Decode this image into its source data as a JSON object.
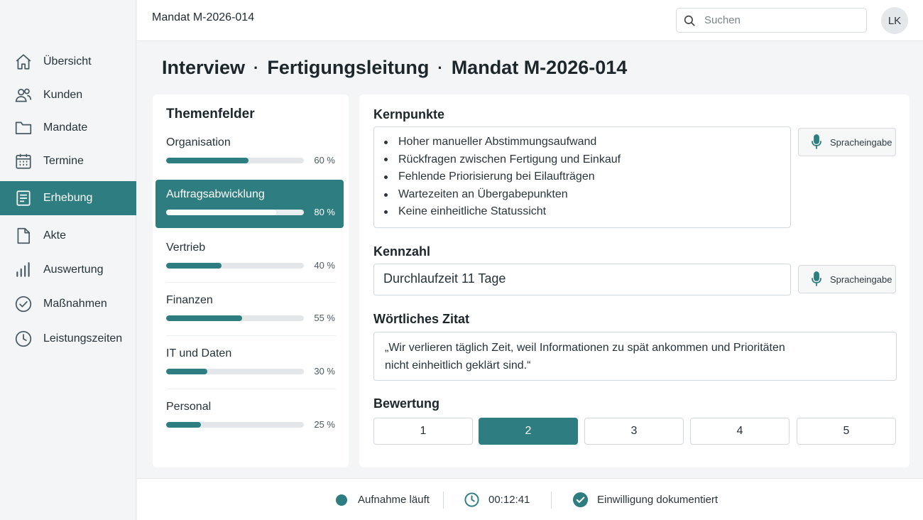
{
  "header": {
    "title": "Mandat M-2026-014",
    "search_placeholder": "Suchen",
    "avatar_initials": "LK"
  },
  "sidebar": {
    "items": [
      {
        "label": "Übersicht",
        "icon": "home-icon"
      },
      {
        "label": "Kunden",
        "icon": "users-icon"
      },
      {
        "label": "Mandate",
        "icon": "folder-icon"
      },
      {
        "label": "Termine",
        "icon": "calendar-icon"
      },
      {
        "label": "Erhebung",
        "icon": "form-icon",
        "active": true
      },
      {
        "label": "Akte",
        "icon": "document-icon"
      },
      {
        "label": "Auswertung",
        "icon": "bar-chart-icon"
      },
      {
        "label": "Maßnahmen",
        "icon": "check-circle-icon"
      },
      {
        "label": "Leistungszeiten",
        "icon": "clock-icon"
      }
    ]
  },
  "page_title": {
    "part1": "Interview",
    "part2": "Fertigungsleitung",
    "part3": "Mandat M-2026-014",
    "separator": "·"
  },
  "topics": {
    "heading": "Themenfelder",
    "items": [
      {
        "label": "Organisation",
        "progress": 60,
        "progress_label": "60 %"
      },
      {
        "label": "Auftragsabwicklung",
        "progress": 80,
        "progress_label": "80 %",
        "active": true
      },
      {
        "label": "Vertrieb",
        "progress": 40,
        "progress_label": "40 %"
      },
      {
        "label": "Finanzen",
        "progress": 55,
        "progress_label": "55 %"
      },
      {
        "label": "IT und Daten",
        "progress": 30,
        "progress_label": "30 %"
      },
      {
        "label": "Personal",
        "progress": 25,
        "progress_label": "25 %"
      }
    ]
  },
  "main": {
    "kernpunkte": {
      "label": "Kernpunkte",
      "items": [
        "Hoher manueller Abstimmungsaufwand",
        "Rückfragen zwischen Fertigung und Einkauf",
        "Fehlende Priorisierung bei Eilaufträgen",
        "Wartezeiten an Übergabepunkten",
        "Keine einheitliche Statussicht"
      ]
    },
    "voice_button_label": "Spracheingabe",
    "kennzahl": {
      "label": "Kennzahl",
      "value": "Durchlaufzeit 11 Tage"
    },
    "zitat": {
      "label": "Wörtliches Zitat",
      "text": "„Wir verlieren täglich Zeit, weil Informationen zu spät ankommen und Prioritäten nicht einheitlich geklärt sind.“"
    },
    "bewertung": {
      "label": "Bewertung",
      "options": [
        "1",
        "2",
        "3",
        "4",
        "5"
      ],
      "selected": "2"
    }
  },
  "footer": {
    "recording": "Aufnahme läuft",
    "timer": "00:12:41",
    "consent": "Einwilligung dokumentiert"
  },
  "colors": {
    "accent": "#2e7d80",
    "background": "#f3f5f6",
    "card": "#ffffff"
  }
}
